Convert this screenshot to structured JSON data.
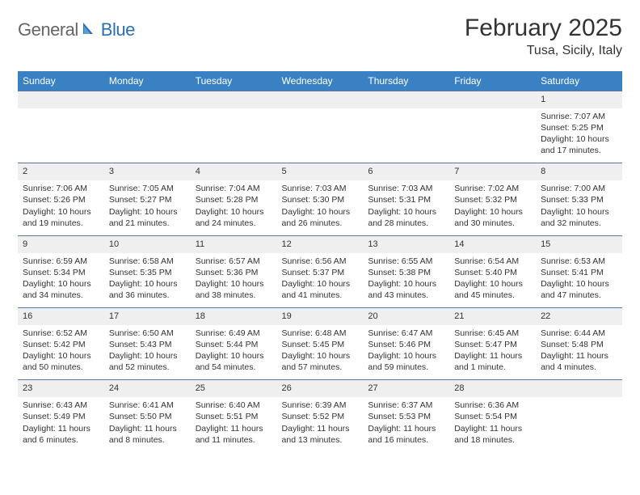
{
  "brand": {
    "general": "General",
    "blue": "Blue"
  },
  "title": {
    "month": "February 2025",
    "location": "Tusa, Sicily, Italy"
  },
  "colors": {
    "header_bg": "#3a81c4",
    "header_text": "#ffffff",
    "daynum_bg": "#efefef",
    "border": "#5878a0",
    "text": "#333333",
    "logo_blue": "#2a6fb5"
  },
  "weekdays": [
    "Sunday",
    "Monday",
    "Tuesday",
    "Wednesday",
    "Thursday",
    "Friday",
    "Saturday"
  ],
  "weeks": [
    {
      "nums": [
        "",
        "",
        "",
        "",
        "",
        "",
        "1"
      ],
      "sunrise": [
        "",
        "",
        "",
        "",
        "",
        "",
        "Sunrise: 7:07 AM"
      ],
      "sunset": [
        "",
        "",
        "",
        "",
        "",
        "",
        "Sunset: 5:25 PM"
      ],
      "day1": [
        "",
        "",
        "",
        "",
        "",
        "",
        "Daylight: 10 hours"
      ],
      "day2": [
        "",
        "",
        "",
        "",
        "",
        "",
        "and 17 minutes."
      ]
    },
    {
      "nums": [
        "2",
        "3",
        "4",
        "5",
        "6",
        "7",
        "8"
      ],
      "sunrise": [
        "Sunrise: 7:06 AM",
        "Sunrise: 7:05 AM",
        "Sunrise: 7:04 AM",
        "Sunrise: 7:03 AM",
        "Sunrise: 7:03 AM",
        "Sunrise: 7:02 AM",
        "Sunrise: 7:00 AM"
      ],
      "sunset": [
        "Sunset: 5:26 PM",
        "Sunset: 5:27 PM",
        "Sunset: 5:28 PM",
        "Sunset: 5:30 PM",
        "Sunset: 5:31 PM",
        "Sunset: 5:32 PM",
        "Sunset: 5:33 PM"
      ],
      "day1": [
        "Daylight: 10 hours",
        "Daylight: 10 hours",
        "Daylight: 10 hours",
        "Daylight: 10 hours",
        "Daylight: 10 hours",
        "Daylight: 10 hours",
        "Daylight: 10 hours"
      ],
      "day2": [
        "and 19 minutes.",
        "and 21 minutes.",
        "and 24 minutes.",
        "and 26 minutes.",
        "and 28 minutes.",
        "and 30 minutes.",
        "and 32 minutes."
      ]
    },
    {
      "nums": [
        "9",
        "10",
        "11",
        "12",
        "13",
        "14",
        "15"
      ],
      "sunrise": [
        "Sunrise: 6:59 AM",
        "Sunrise: 6:58 AM",
        "Sunrise: 6:57 AM",
        "Sunrise: 6:56 AM",
        "Sunrise: 6:55 AM",
        "Sunrise: 6:54 AM",
        "Sunrise: 6:53 AM"
      ],
      "sunset": [
        "Sunset: 5:34 PM",
        "Sunset: 5:35 PM",
        "Sunset: 5:36 PM",
        "Sunset: 5:37 PM",
        "Sunset: 5:38 PM",
        "Sunset: 5:40 PM",
        "Sunset: 5:41 PM"
      ],
      "day1": [
        "Daylight: 10 hours",
        "Daylight: 10 hours",
        "Daylight: 10 hours",
        "Daylight: 10 hours",
        "Daylight: 10 hours",
        "Daylight: 10 hours",
        "Daylight: 10 hours"
      ],
      "day2": [
        "and 34 minutes.",
        "and 36 minutes.",
        "and 38 minutes.",
        "and 41 minutes.",
        "and 43 minutes.",
        "and 45 minutes.",
        "and 47 minutes."
      ]
    },
    {
      "nums": [
        "16",
        "17",
        "18",
        "19",
        "20",
        "21",
        "22"
      ],
      "sunrise": [
        "Sunrise: 6:52 AM",
        "Sunrise: 6:50 AM",
        "Sunrise: 6:49 AM",
        "Sunrise: 6:48 AM",
        "Sunrise: 6:47 AM",
        "Sunrise: 6:45 AM",
        "Sunrise: 6:44 AM"
      ],
      "sunset": [
        "Sunset: 5:42 PM",
        "Sunset: 5:43 PM",
        "Sunset: 5:44 PM",
        "Sunset: 5:45 PM",
        "Sunset: 5:46 PM",
        "Sunset: 5:47 PM",
        "Sunset: 5:48 PM"
      ],
      "day1": [
        "Daylight: 10 hours",
        "Daylight: 10 hours",
        "Daylight: 10 hours",
        "Daylight: 10 hours",
        "Daylight: 10 hours",
        "Daylight: 11 hours",
        "Daylight: 11 hours"
      ],
      "day2": [
        "and 50 minutes.",
        "and 52 minutes.",
        "and 54 minutes.",
        "and 57 minutes.",
        "and 59 minutes.",
        "and 1 minute.",
        "and 4 minutes."
      ]
    },
    {
      "nums": [
        "23",
        "24",
        "25",
        "26",
        "27",
        "28",
        ""
      ],
      "sunrise": [
        "Sunrise: 6:43 AM",
        "Sunrise: 6:41 AM",
        "Sunrise: 6:40 AM",
        "Sunrise: 6:39 AM",
        "Sunrise: 6:37 AM",
        "Sunrise: 6:36 AM",
        ""
      ],
      "sunset": [
        "Sunset: 5:49 PM",
        "Sunset: 5:50 PM",
        "Sunset: 5:51 PM",
        "Sunset: 5:52 PM",
        "Sunset: 5:53 PM",
        "Sunset: 5:54 PM",
        ""
      ],
      "day1": [
        "Daylight: 11 hours",
        "Daylight: 11 hours",
        "Daylight: 11 hours",
        "Daylight: 11 hours",
        "Daylight: 11 hours",
        "Daylight: 11 hours",
        ""
      ],
      "day2": [
        "and 6 minutes.",
        "and 8 minutes.",
        "and 11 minutes.",
        "and 13 minutes.",
        "and 16 minutes.",
        "and 18 minutes.",
        ""
      ]
    }
  ]
}
